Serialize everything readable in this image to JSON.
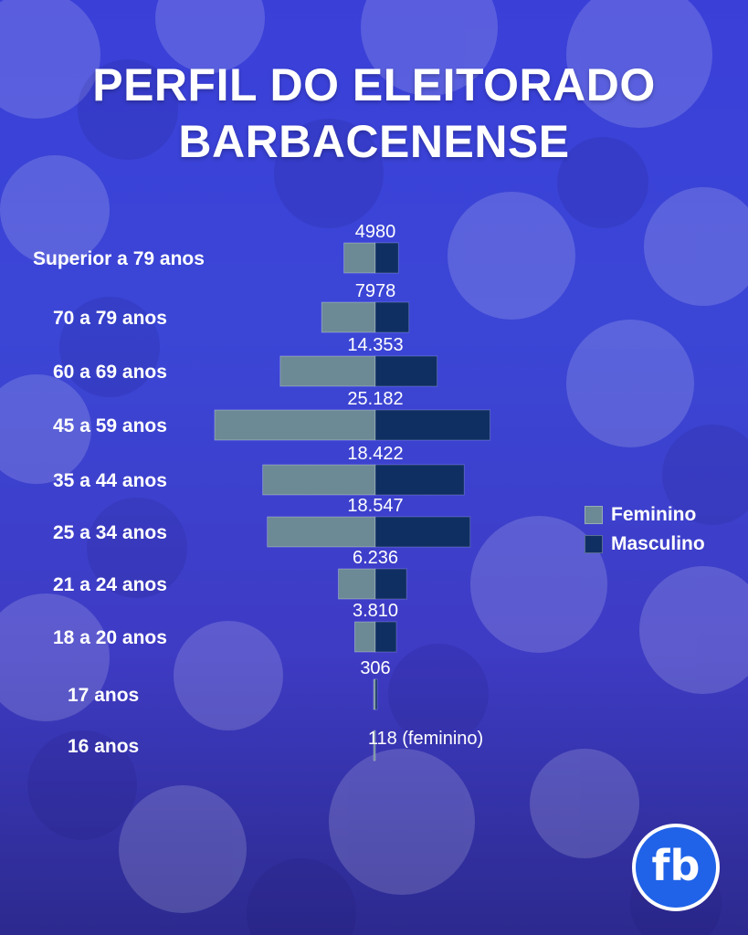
{
  "title_line1": "PERFIL DO ELEITORADO",
  "title_line2": "BARBACENENSE",
  "logo_text": "fb",
  "colors": {
    "feminino": "#6b8a96",
    "masculino": "#0f2f63"
  },
  "chart_data": {
    "type": "bar",
    "orientation": "horizontal-population-pyramid",
    "categories": [
      "Superior a 79 anos",
      "70 a 79 anos",
      "60 a 69 anos",
      "45 a 59 anos",
      "35 a 44 anos",
      "25 a 34 anos",
      "21 a 24 anos",
      "18 a 20 anos",
      "17 anos",
      "16 anos"
    ],
    "totals": [
      4980,
      7978,
      14353,
      25182,
      18422,
      18547,
      6236,
      3810,
      306,
      118
    ],
    "total_labels": [
      "4980",
      "7978",
      "14.353",
      "25.182",
      "18.422",
      "18.547",
      "6.236",
      "3.810",
      "306",
      "118 (feminino)"
    ],
    "series": [
      {
        "name": "Feminino",
        "values": [
          2870,
          4910,
          8700,
          14700,
          10300,
          9880,
          3380,
          1890,
          150,
          118
        ]
      },
      {
        "name": "Masculino",
        "values": [
          2110,
          3068,
          5653,
          10482,
          8122,
          8667,
          2856,
          1920,
          156,
          0
        ]
      }
    ],
    "legend": [
      "Feminino",
      "Masculino"
    ],
    "legend_position": "right"
  }
}
